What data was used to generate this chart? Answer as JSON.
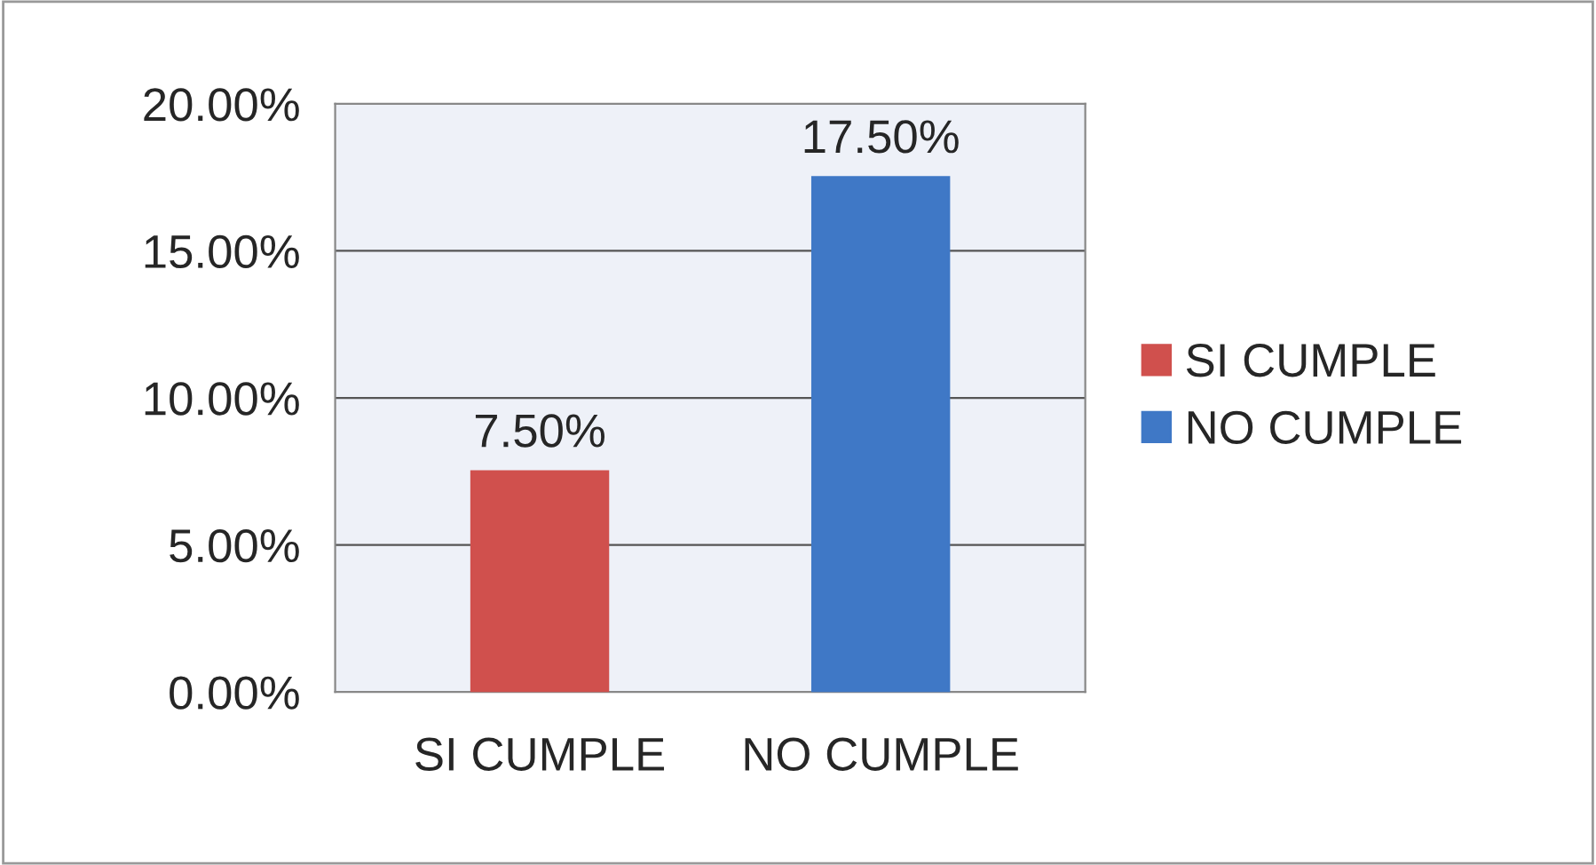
{
  "chart_data": {
    "type": "bar",
    "categories": [
      "SI CUMPLE",
      "NO CUMPLE"
    ],
    "series": [
      {
        "name": "SI CUMPLE",
        "color": "#d0504d",
        "values": [
          7.5,
          null
        ],
        "value_labels": [
          "7.50%",
          null
        ]
      },
      {
        "name": "NO CUMPLE",
        "color": "#3f78c6",
        "values": [
          null,
          17.5
        ],
        "value_labels": [
          null,
          "17.50%"
        ]
      }
    ],
    "ylim": [
      0,
      20
    ],
    "yticks": [
      {
        "value": 0,
        "label": "0.00%"
      },
      {
        "value": 5,
        "label": "5.00%"
      },
      {
        "value": 10,
        "label": "10.00%"
      },
      {
        "value": 15,
        "label": "15.00%"
      },
      {
        "value": 20,
        "label": "20.00%"
      }
    ],
    "grid": "y",
    "legend": "right"
  }
}
